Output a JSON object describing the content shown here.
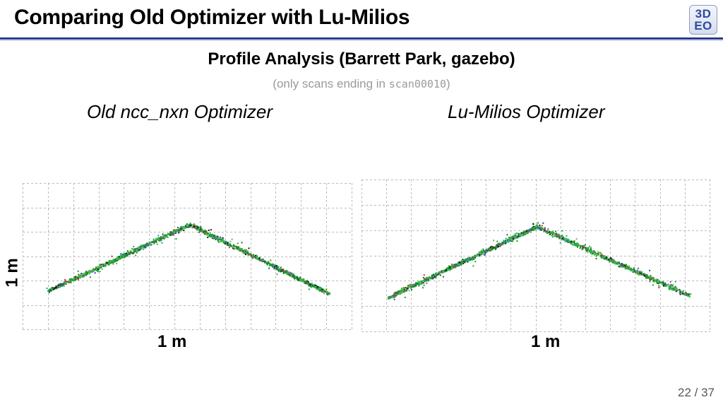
{
  "slide": {
    "title": "Comparing Old Optimizer with Lu-Milios",
    "logo": {
      "line1": "3D",
      "line2": "EO"
    },
    "subtitle": "Profile Analysis (Barrett Park, gazebo)",
    "note_prefix": "(only scans ending in ",
    "note_code": "scan00010",
    "note_suffix": ")",
    "page_current": "22",
    "page_separator": " / ",
    "page_total": "37"
  },
  "panels": [
    {
      "title": "Old ncc_nxn Optimizer",
      "x_scale_label": "1 m",
      "y_scale_label": "1 m"
    },
    {
      "title": "Lu-Milios Optimizer",
      "x_scale_label": "1 m"
    }
  ],
  "colors": {
    "title_rule": "#2b3a8c",
    "grid": "#bbbbbb",
    "points": [
      "#1f9e2c",
      "#2db33a",
      "#0d7a22",
      "#4fc152",
      "#c0392b",
      "#2d3fb5",
      "#111111",
      "#17a2a6",
      "#8e44ad"
    ]
  }
}
